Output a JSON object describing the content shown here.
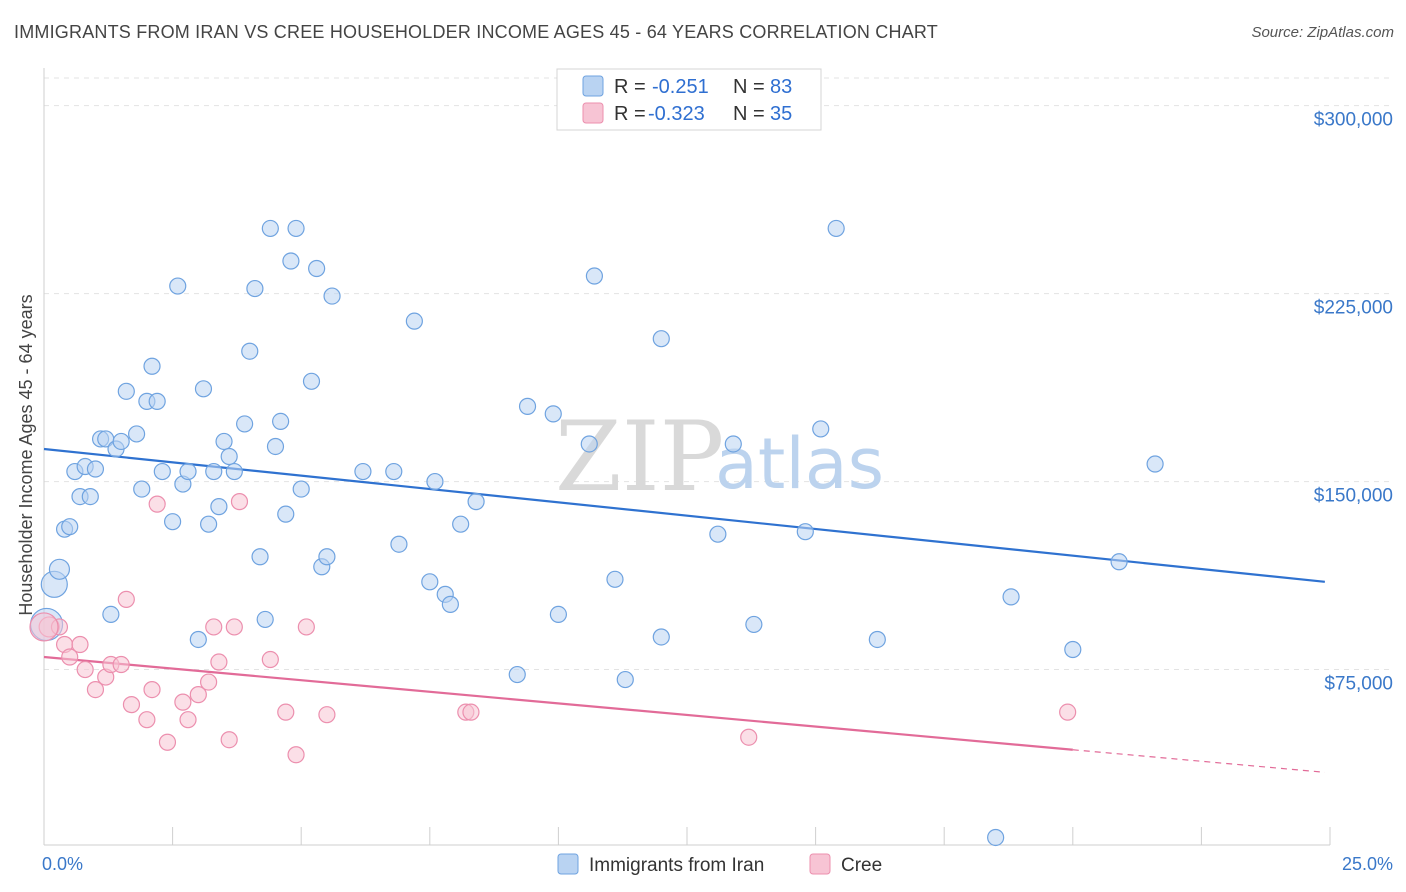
{
  "title": "IMMIGRANTS FROM IRAN VS CREE HOUSEHOLDER INCOME AGES 45 - 64 YEARS CORRELATION CHART",
  "source": "Source: ZipAtlas.com",
  "colors": {
    "blue": "#6fa3e0",
    "blue_fill": "#b9d3f2",
    "blue_line": "#2f72d0",
    "pink": "#ec8fae",
    "pink_fill": "#f7c4d4",
    "pink_line": "#e26b98",
    "accent_text": "#3a78c9"
  },
  "watermark": {
    "zip": "ZIP",
    "atlas": "atlas"
  },
  "legend": {
    "rows": [
      {
        "r_label": "R =",
        "r_value": "-0.251",
        "n_label": "N =",
        "n_value": "83"
      },
      {
        "r_label": "R =",
        "r_value": "-0.323",
        "n_label": "N =",
        "n_value": "35"
      }
    ]
  },
  "bottom_legend": [
    "Immigrants from Iran",
    "Cree"
  ],
  "chart_data": {
    "type": "scatter",
    "xlabel": "",
    "ylabel": "Householder Income Ages 45 - 64 years",
    "xlim": [
      0,
      25
    ],
    "ylim": [
      5000,
      315000
    ],
    "x_tick_labels": [
      {
        "value": 0,
        "label": "0.0%"
      },
      {
        "value": 25,
        "label": "25.0%"
      }
    ],
    "y_ticks": [
      {
        "value": 75000,
        "label": "$75,000"
      },
      {
        "value": 150000,
        "label": "$150,000"
      },
      {
        "value": 225000,
        "label": "$225,000"
      },
      {
        "value": 300000,
        "label": "$300,000"
      }
    ],
    "grid": true,
    "series": [
      {
        "name": "Immigrants from Iran",
        "color": "#6fa3e0",
        "trend": {
          "x": [
            0,
            24.9
          ],
          "y": [
            163000,
            110000
          ]
        },
        "points": [
          [
            0.2,
            109000,
            13
          ],
          [
            0.3,
            115000,
            10
          ],
          [
            0.4,
            131000,
            8
          ],
          [
            0.5,
            132000,
            8
          ],
          [
            0.6,
            154000,
            8
          ],
          [
            0.7,
            144000,
            8
          ],
          [
            0.8,
            156000,
            8
          ],
          [
            0.9,
            144000,
            8
          ],
          [
            1.0,
            155000,
            8
          ],
          [
            1.1,
            167000,
            8
          ],
          [
            1.2,
            167000,
            8
          ],
          [
            1.3,
            97000,
            8
          ],
          [
            1.4,
            163000,
            8
          ],
          [
            1.5,
            166000,
            8
          ],
          [
            1.6,
            186000,
            8
          ],
          [
            1.8,
            169000,
            8
          ],
          [
            1.9,
            147000,
            8
          ],
          [
            2.0,
            182000,
            8
          ],
          [
            2.1,
            196000,
            8
          ],
          [
            2.2,
            182000,
            8
          ],
          [
            2.3,
            154000,
            8
          ],
          [
            2.5,
            134000,
            8
          ],
          [
            2.6,
            228000,
            8
          ],
          [
            2.7,
            149000,
            8
          ],
          [
            2.8,
            154000,
            8
          ],
          [
            3.0,
            87000,
            8
          ],
          [
            3.1,
            187000,
            8
          ],
          [
            3.2,
            133000,
            8
          ],
          [
            3.3,
            154000,
            8
          ],
          [
            3.4,
            140000,
            8
          ],
          [
            3.5,
            166000,
            8
          ],
          [
            3.6,
            160000,
            8
          ],
          [
            3.7,
            154000,
            8
          ],
          [
            3.9,
            173000,
            8
          ],
          [
            4.0,
            202000,
            8
          ],
          [
            4.1,
            227000,
            8
          ],
          [
            4.2,
            120000,
            8
          ],
          [
            4.3,
            95000,
            8
          ],
          [
            4.4,
            251000,
            8
          ],
          [
            4.5,
            164000,
            8
          ],
          [
            4.6,
            174000,
            8
          ],
          [
            4.7,
            137000,
            8
          ],
          [
            4.8,
            238000,
            8
          ],
          [
            4.9,
            251000,
            8
          ],
          [
            5.0,
            147000,
            8
          ],
          [
            5.2,
            190000,
            8
          ],
          [
            5.3,
            235000,
            8
          ],
          [
            5.4,
            116000,
            8
          ],
          [
            5.5,
            120000,
            8
          ],
          [
            5.6,
            224000,
            8
          ],
          [
            6.2,
            154000,
            8
          ],
          [
            6.8,
            154000,
            8
          ],
          [
            6.9,
            125000,
            8
          ],
          [
            7.2,
            214000,
            8
          ],
          [
            7.5,
            110000,
            8
          ],
          [
            7.8,
            105000,
            8
          ],
          [
            7.9,
            101000,
            8
          ],
          [
            7.6,
            150000,
            8
          ],
          [
            8.1,
            133000,
            8
          ],
          [
            8.4,
            142000,
            8
          ],
          [
            9.2,
            73000,
            8
          ],
          [
            9.4,
            180000,
            8
          ],
          [
            9.9,
            177000,
            8
          ],
          [
            10.0,
            97000,
            8
          ],
          [
            10.6,
            165000,
            8
          ],
          [
            10.7,
            232000,
            8
          ],
          [
            11.1,
            111000,
            8
          ],
          [
            11.3,
            71000,
            8
          ],
          [
            12.0,
            207000,
            8
          ],
          [
            12.0,
            88000,
            8
          ],
          [
            13.1,
            129000,
            8
          ],
          [
            13.4,
            165000,
            8
          ],
          [
            13.8,
            93000,
            8
          ],
          [
            14.8,
            130000,
            8
          ],
          [
            15.1,
            171000,
            8
          ],
          [
            15.4,
            251000,
            8
          ],
          [
            16.2,
            87000,
            8
          ],
          [
            18.5,
            8000,
            8
          ],
          [
            18.8,
            104000,
            8
          ],
          [
            20.0,
            83000,
            8
          ],
          [
            20.9,
            118000,
            8
          ],
          [
            21.6,
            157000,
            8
          ],
          [
            0.05,
            93000,
            16
          ]
        ]
      },
      {
        "name": "Cree",
        "color": "#ec8fae",
        "trend": {
          "x": [
            0,
            20
          ],
          "y": [
            80000,
            43000
          ]
        },
        "trend_dashed": {
          "x": [
            20,
            24.9
          ],
          "y": [
            43000,
            34000
          ]
        },
        "points": [
          [
            0.1,
            92000,
            10
          ],
          [
            0.3,
            92000,
            8
          ],
          [
            0.4,
            85000,
            8
          ],
          [
            0.5,
            80000,
            8
          ],
          [
            0.7,
            85000,
            8
          ],
          [
            0.8,
            75000,
            8
          ],
          [
            1.0,
            67000,
            8
          ],
          [
            1.2,
            72000,
            8
          ],
          [
            1.3,
            77000,
            8
          ],
          [
            1.5,
            77000,
            8
          ],
          [
            1.6,
            103000,
            8
          ],
          [
            1.7,
            61000,
            8
          ],
          [
            2.0,
            55000,
            8
          ],
          [
            2.1,
            67000,
            8
          ],
          [
            2.2,
            141000,
            8
          ],
          [
            2.4,
            46000,
            8
          ],
          [
            2.7,
            62000,
            8
          ],
          [
            2.8,
            55000,
            8
          ],
          [
            3.0,
            65000,
            8
          ],
          [
            3.2,
            70000,
            8
          ],
          [
            3.3,
            92000,
            8
          ],
          [
            3.4,
            78000,
            8
          ],
          [
            3.6,
            47000,
            8
          ],
          [
            3.7,
            92000,
            8
          ],
          [
            3.8,
            142000,
            8
          ],
          [
            4.4,
            79000,
            8
          ],
          [
            4.7,
            58000,
            8
          ],
          [
            4.9,
            41000,
            8
          ],
          [
            5.1,
            92000,
            8
          ],
          [
            5.5,
            57000,
            8
          ],
          [
            8.2,
            58000,
            8
          ],
          [
            8.3,
            58000,
            8
          ],
          [
            13.7,
            48000,
            8
          ],
          [
            19.9,
            58000,
            8
          ],
          [
            0.0,
            92000,
            14
          ]
        ]
      }
    ]
  }
}
